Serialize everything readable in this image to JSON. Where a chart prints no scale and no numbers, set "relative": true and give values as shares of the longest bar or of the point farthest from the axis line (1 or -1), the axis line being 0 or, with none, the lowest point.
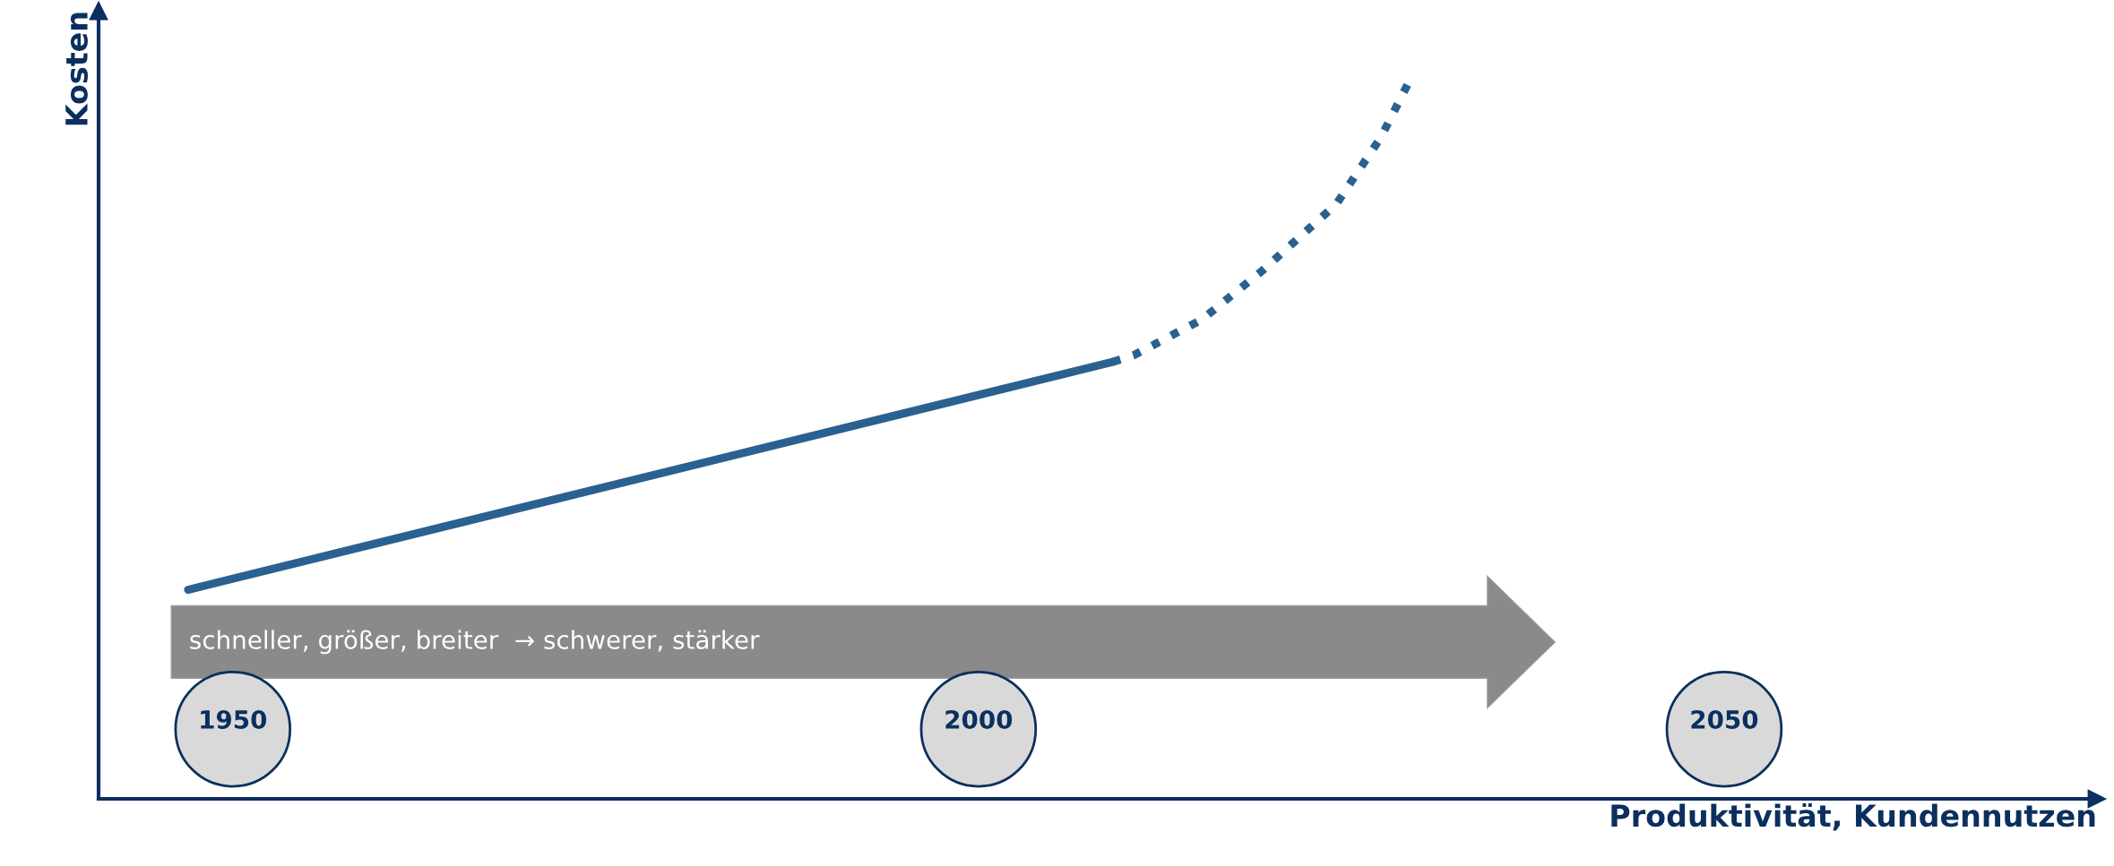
{
  "chart_data": {
    "type": "line",
    "relative": true,
    "xlabel": "Produktivität, Kundennutzen",
    "ylabel": "Kosten",
    "xlim": [
      1941,
      2075
    ],
    "xticks": [
      1950,
      2000,
      2050
    ],
    "grid": false,
    "legend": false,
    "annotations": [
      "schneller, größer, breiter  → schwerer, stärker"
    ],
    "series": [
      {
        "color": "#2a6190",
        "line_style": "solid",
        "x": [
          1947,
          2009
        ],
        "values": [
          0.29,
          0.606
        ]
      },
      {
        "color": "#2a6190",
        "line_style": "dotted",
        "x": [
          2009,
          2010.4,
          2015,
          2019,
          2024,
          2027,
          2029
        ],
        "values": [
          0.606,
          0.615,
          0.665,
          0.732,
          0.825,
          0.918,
          1
        ]
      }
    ]
  }
}
